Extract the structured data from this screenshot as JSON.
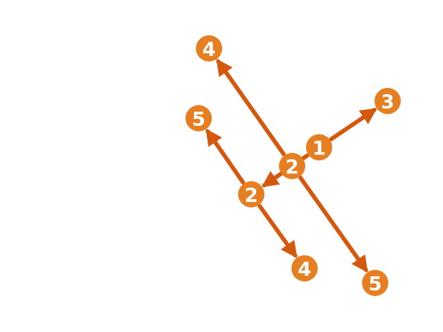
{
  "colors": {
    "node_fill": "#e67e22",
    "edge_stroke": "#d4590f",
    "label": "#ffffff",
    "background": "#ffffff"
  },
  "nodes": [
    {
      "id": "n1",
      "label": "1"
    },
    {
      "id": "n2a",
      "label": "2"
    },
    {
      "id": "n3",
      "label": "3"
    },
    {
      "id": "n2b",
      "label": "2"
    },
    {
      "id": "n4a",
      "label": "4"
    },
    {
      "id": "n5a",
      "label": "5"
    },
    {
      "id": "n5b",
      "label": "5"
    },
    {
      "id": "n4b",
      "label": "4"
    }
  ],
  "edges": [
    {
      "from": "n1",
      "to": "n3"
    },
    {
      "from": "n1",
      "to": "n2b"
    },
    {
      "from": "n2a",
      "to": "n4a"
    },
    {
      "from": "n2a",
      "to": "n5b"
    },
    {
      "from": "n2b",
      "to": "n5a"
    },
    {
      "from": "n2b",
      "to": "n4b"
    }
  ]
}
